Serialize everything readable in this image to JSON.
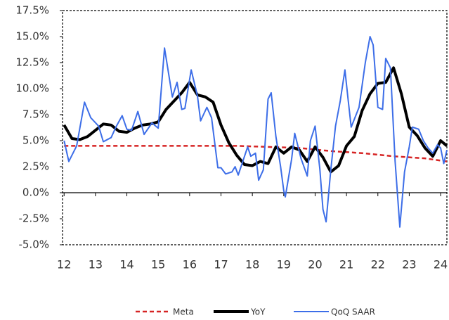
{
  "chart_data": {
    "type": "line",
    "xlim": [
      11.95,
      24.2
    ],
    "xticks": [
      12,
      13,
      14,
      15,
      16,
      17,
      18,
      19,
      20,
      21,
      22,
      23,
      24
    ],
    "ylim": [
      -5,
      17.5
    ],
    "yticks": [
      {
        "value": -5,
        "label": "-5.0%"
      },
      {
        "value": -2.5,
        "label": "-2.5%"
      },
      {
        "value": 0,
        "label": "0.0%"
      },
      {
        "value": 2.5,
        "label": "2.5%"
      },
      {
        "value": 5,
        "label": "5.0%"
      },
      {
        "value": 7.5,
        "label": "7.5%"
      },
      {
        "value": 10,
        "label": "10.0%"
      },
      {
        "value": 12.5,
        "label": "12.5%"
      },
      {
        "value": 15,
        "label": "15.0%"
      },
      {
        "value": 17.5,
        "label": "17.5%"
      }
    ],
    "series": [
      {
        "name": "Meta",
        "color": "#d62424",
        "dash": true,
        "width": 2.5,
        "x": [
          12,
          17.5,
          18.5,
          19.5,
          20.5,
          21.5,
          22.5,
          23.5,
          24.2
        ],
        "values": [
          4.5,
          4.5,
          4.4,
          4.3,
          4.0,
          3.8,
          3.5,
          3.3,
          3.0
        ]
      },
      {
        "name": "YoY",
        "color": "#000000",
        "dash": false,
        "width": 4,
        "x": [
          12.0,
          12.25,
          12.5,
          12.75,
          13.0,
          13.25,
          13.5,
          13.75,
          14.0,
          14.25,
          14.5,
          14.75,
          15.0,
          15.25,
          15.5,
          15.75,
          16.0,
          16.25,
          16.5,
          16.75,
          17.0,
          17.25,
          17.5,
          17.75,
          18.0,
          18.25,
          18.5,
          18.75,
          19.0,
          19.25,
          19.5,
          19.75,
          20.0,
          20.25,
          20.5,
          20.75,
          21.0,
          21.25,
          21.5,
          21.75,
          22.0,
          22.25,
          22.5,
          22.75,
          23.0,
          23.25,
          23.5,
          23.75,
          24.0,
          24.2
        ],
        "values": [
          6.5,
          5.2,
          5.1,
          5.4,
          6.0,
          6.6,
          6.5,
          5.9,
          5.8,
          6.2,
          6.5,
          6.6,
          6.8,
          8.0,
          8.8,
          9.6,
          10.6,
          9.4,
          9.2,
          8.7,
          6.5,
          4.8,
          3.6,
          2.7,
          2.6,
          3.0,
          2.8,
          4.4,
          3.8,
          4.4,
          4.1,
          3.0,
          4.4,
          3.4,
          2.0,
          2.6,
          4.5,
          5.4,
          7.9,
          9.5,
          10.5,
          10.6,
          12.0,
          9.5,
          6.3,
          5.5,
          4.3,
          3.5,
          5.0,
          4.5
        ]
      },
      {
        "name": "QoQ SAAR",
        "color": "#3d6ee8",
        "dash": false,
        "width": 2,
        "x": [
          12.0,
          12.15,
          12.4,
          12.65,
          12.85,
          13.1,
          13.25,
          13.5,
          13.65,
          13.85,
          14.0,
          14.15,
          14.35,
          14.55,
          14.8,
          15.0,
          15.2,
          15.45,
          15.6,
          15.75,
          15.85,
          16.05,
          16.25,
          16.35,
          16.55,
          16.7,
          16.9,
          17.0,
          17.15,
          17.35,
          17.45,
          17.55,
          17.75,
          17.85,
          17.95,
          18.1,
          18.2,
          18.35,
          18.5,
          18.6,
          18.75,
          18.9,
          19.0,
          19.05,
          19.25,
          19.35,
          19.55,
          19.75,
          19.85,
          20.0,
          20.15,
          20.25,
          20.35,
          20.5,
          20.65,
          20.8,
          20.95,
          21.05,
          21.15,
          21.4,
          21.6,
          21.75,
          21.85,
          22.0,
          22.15,
          22.25,
          22.4,
          22.55,
          22.7,
          22.85,
          23.0,
          23.1,
          23.3,
          23.45,
          23.6,
          23.75,
          23.9,
          24.0,
          24.1,
          24.2
        ],
        "values": [
          5.0,
          3.0,
          4.5,
          8.7,
          7.2,
          6.4,
          4.9,
          5.3,
          6.3,
          7.4,
          6.1,
          6.0,
          7.8,
          5.6,
          6.7,
          6.2,
          13.9,
          9.2,
          10.6,
          8.0,
          8.1,
          11.8,
          9.3,
          6.9,
          8.2,
          7.2,
          2.4,
          2.4,
          1.8,
          2.0,
          2.5,
          1.7,
          3.5,
          4.4,
          3.5,
          3.8,
          1.2,
          2.2,
          9.0,
          9.6,
          5.4,
          2.5,
          0.2,
          -0.4,
          3.2,
          5.7,
          3.3,
          1.6,
          5.0,
          6.4,
          2.3,
          -1.6,
          -2.8,
          2.2,
          6.4,
          8.8,
          11.8,
          9.0,
          6.3,
          8.2,
          12.5,
          15.0,
          14.2,
          8.2,
          8.0,
          12.9,
          12.0,
          3.0,
          -3.3,
          2.0,
          4.4,
          6.3,
          6.1,
          5.0,
          4.3,
          3.8,
          4.6,
          4.3,
          2.8,
          4.1
        ]
      }
    ]
  }
}
